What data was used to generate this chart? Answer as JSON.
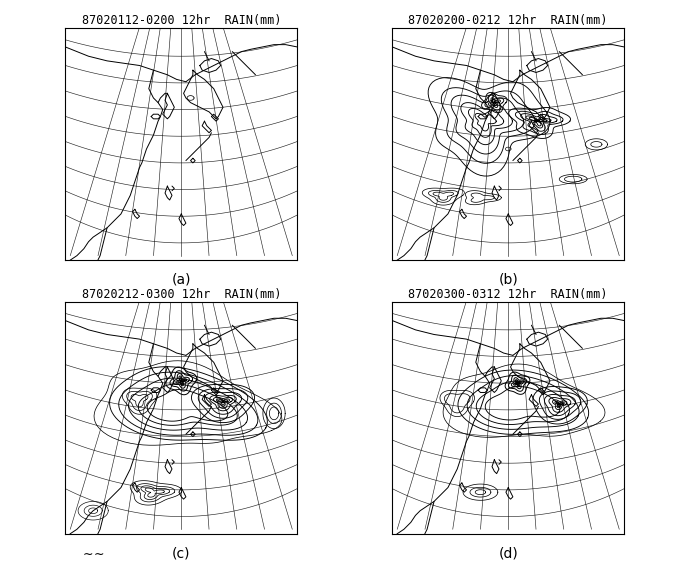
{
  "titles": [
    "87020112-0200 12hr  RAIN(mm)",
    "87020200-0212 12hr  RAIN(mm)",
    "87020212-0300 12hr  RAIN(mm)",
    "87020300-0312 12hr  RAIN(mm)"
  ],
  "labels": [
    "(a)",
    "(b)",
    "(c)",
    "(d)"
  ],
  "fig_background": "#ffffff",
  "title_fontsize": 8.5,
  "label_fontsize": 10,
  "grid_lw": 0.45,
  "coast_lw": 0.7,
  "contour_lw": 0.65
}
